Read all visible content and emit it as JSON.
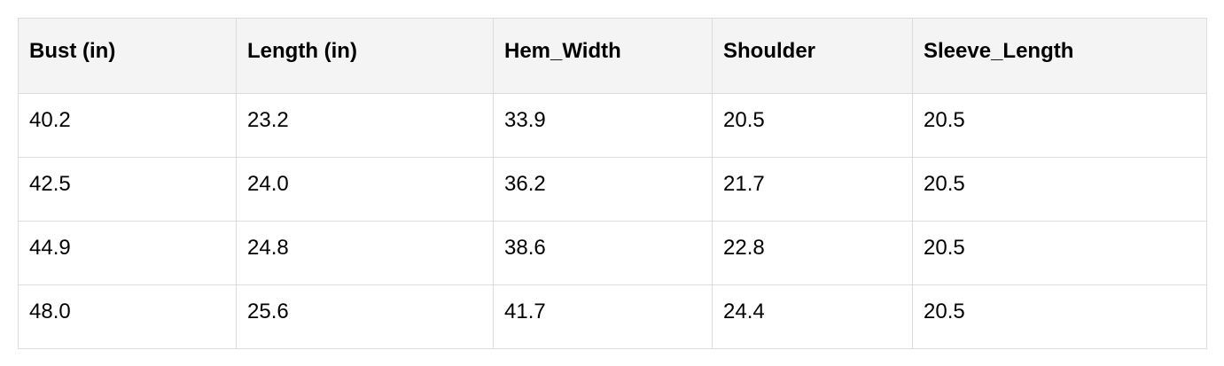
{
  "table": {
    "headers": [
      "Bust (in)",
      "Length (in)",
      "Hem_Width",
      "Shoulder",
      "Sleeve_Length"
    ],
    "rows": [
      [
        "40.2",
        "23.2",
        "33.9",
        "20.5",
        "20.5"
      ],
      [
        "42.5",
        "24.0",
        "36.2",
        "21.7",
        "20.5"
      ],
      [
        "44.9",
        "24.8",
        "38.6",
        "22.8",
        "20.5"
      ],
      [
        "48.0",
        "25.6",
        "41.7",
        "24.4",
        "20.5"
      ]
    ]
  }
}
